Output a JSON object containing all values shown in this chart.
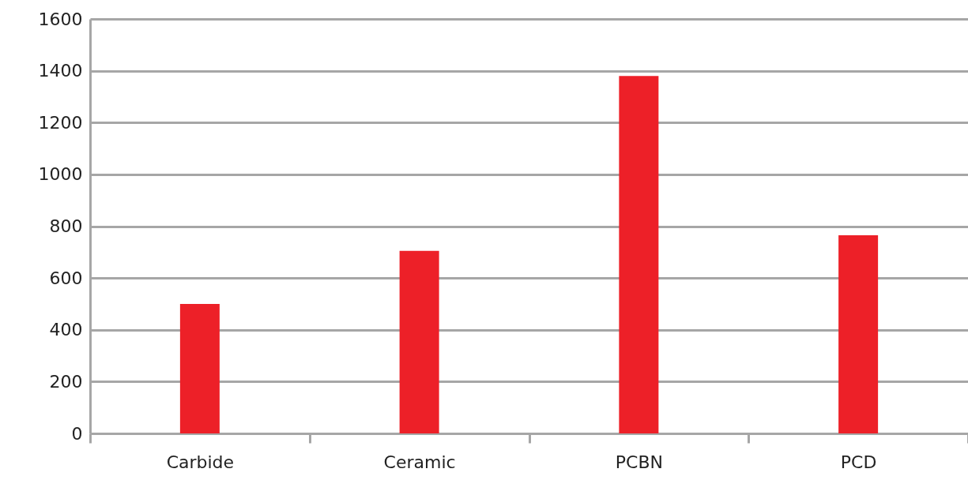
{
  "chart_data": {
    "type": "bar",
    "categories": [
      "Carbide",
      "Ceramic",
      "PCBN",
      "PCD"
    ],
    "values": [
      500,
      705,
      1380,
      765
    ],
    "color": "#ed2028",
    "ylim": [
      0,
      1600
    ],
    "yticks": [
      0,
      200,
      400,
      600,
      800,
      1000,
      1200,
      1400,
      1600
    ],
    "grid": "y"
  }
}
